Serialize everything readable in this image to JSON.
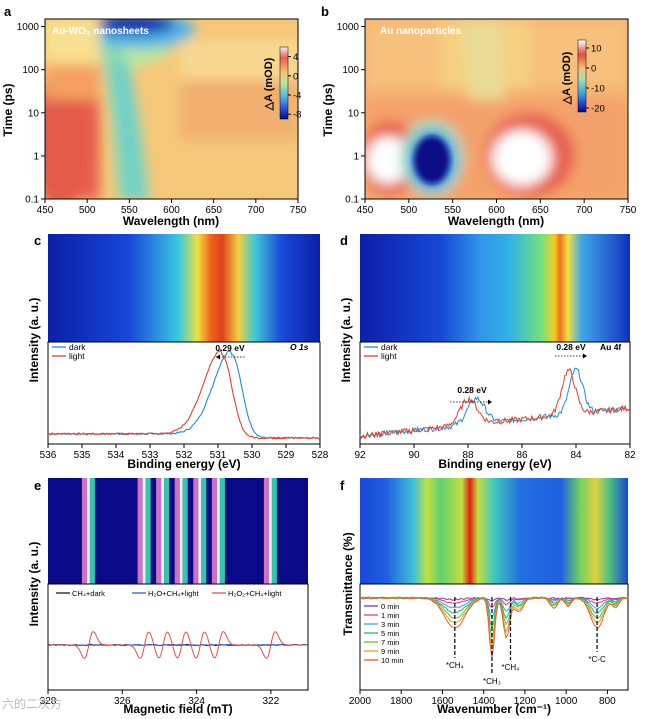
{
  "colors": {
    "heat_a": [
      "#0a0a88",
      "#2a55d8",
      "#4fb3e8",
      "#b7e6a0",
      "#f5d070",
      "#f4a060",
      "#e76050",
      "#f3f3f3"
    ],
    "heat_b": [
      "#0a0a88",
      "#1e3cc8",
      "#3aa0e0",
      "#9fdcbf",
      "#f7d48a",
      "#f29a6c",
      "#e05040",
      "#ffffff"
    ],
    "dark": "#1f8fd0",
    "light": "#e04030",
    "panel_e": [
      "#1a1a1a",
      "#2d5fd6",
      "#e05050"
    ],
    "panel_f": [
      "#8b2fb0",
      "#e04070",
      "#3aa0e0",
      "#2ab07a",
      "#60c030",
      "#e0a020",
      "#e06030",
      "#c02020"
    ]
  },
  "chart_data": [
    {
      "panel": "a",
      "type": "heatmap",
      "inset_label": "Au-WO₃ nanosheets",
      "xlabel": "Wavelength (nm)",
      "ylabel": "Time (ps)",
      "x_ticks": [
        "450",
        "500",
        "550",
        "600",
        "650",
        "700",
        "750"
      ],
      "y_ticks": [
        "0.1",
        "1",
        "10",
        "100",
        "1000"
      ],
      "xlim": [
        450,
        750
      ],
      "ylim": [
        0.1,
        1500
      ],
      "y_scale": "log",
      "colorbar_label": "△A (mOD)",
      "colorbar_ticks": [
        "4",
        "0",
        "-4",
        "-8"
      ],
      "colorbar_range": [
        -9,
        6
      ]
    },
    {
      "panel": "b",
      "type": "heatmap",
      "inset_label": "Au nanoparticles",
      "xlabel": "Wavelength (nm)",
      "ylabel": "Time (ps)",
      "x_ticks": [
        "450",
        "500",
        "550",
        "600",
        "650",
        "700",
        "750"
      ],
      "y_ticks": [
        "0.1",
        "1",
        "10",
        "100",
        "1000"
      ],
      "xlim": [
        450,
        750
      ],
      "ylim": [
        0.1,
        1500
      ],
      "y_scale": "log",
      "colorbar_label": "△A (mOD)",
      "colorbar_ticks": [
        "10",
        "0",
        "-10",
        "-20"
      ],
      "colorbar_range": [
        -22,
        14
      ]
    },
    {
      "panel": "c",
      "type": "line",
      "annotation": "0.29 eV",
      "core_level": "O 1s",
      "xlabel": "Binding energy (eV)",
      "ylabel": "Intensity (a. u.)",
      "x_ticks": [
        "536",
        "535",
        "534",
        "533",
        "532",
        "531",
        "530",
        "529",
        "528"
      ],
      "xlim": [
        536,
        528
      ],
      "series": [
        {
          "name": "dark",
          "peak": 530.6
        },
        {
          "name": "light",
          "peak": 530.89
        }
      ]
    },
    {
      "panel": "d",
      "type": "line",
      "annotations": [
        "0.28 eV",
        "0.28 eV"
      ],
      "core_level": "Au 4f",
      "xlabel": "Binding energy (eV)",
      "ylabel": "Intensity (a. u.)",
      "x_ticks": [
        "92",
        "90",
        "88",
        "86",
        "84",
        "82"
      ],
      "xlim": [
        92,
        82
      ],
      "series": [
        {
          "name": "dark",
          "peaks": [
            87.7,
            84.0
          ]
        },
        {
          "name": "light",
          "peaks": [
            87.98,
            84.28
          ]
        }
      ]
    },
    {
      "panel": "e",
      "type": "line",
      "xlabel": "Magnetic field (mT)",
      "ylabel": "Intensity (a. u.)",
      "x_ticks": [
        "328",
        "326",
        "324",
        "322"
      ],
      "xlim": [
        328,
        321
      ],
      "series": [
        {
          "name": "CH₄+dark"
        },
        {
          "name": "H₂O+CH₄+light"
        },
        {
          "name": "H₂O₂+CH₄+light",
          "line_centers": [
            326.9,
            325.4,
            324.9,
            324.4,
            323.9,
            323.4,
            322.0
          ]
        }
      ]
    },
    {
      "panel": "f",
      "type": "line",
      "xlabel": "Wavenumber (cm⁻¹)",
      "ylabel": "Transmittance (%)",
      "x_ticks": [
        "2000",
        "1800",
        "1600",
        "1400",
        "1200",
        "1000",
        "800"
      ],
      "xlim": [
        2000,
        700
      ],
      "legend": [
        "0 min",
        "1 min",
        "3 min",
        "5 min",
        "7 min",
        "9 min",
        "10 min"
      ],
      "band_labels": [
        "*CH₄",
        "*CH₃",
        "*CH₄",
        "*C-C"
      ],
      "band_positions": [
        1540,
        1360,
        1270,
        850
      ]
    }
  ],
  "panel_letters": [
    "a",
    "b",
    "c",
    "d",
    "e",
    "f"
  ],
  "watermark": "六的二次方"
}
